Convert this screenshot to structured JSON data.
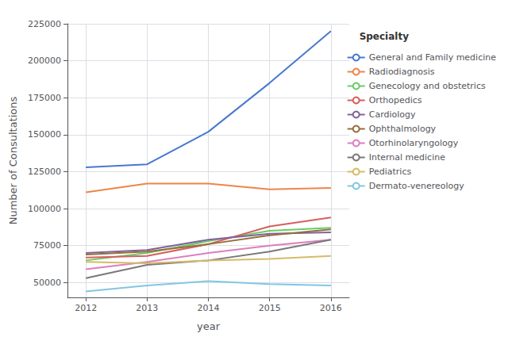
{
  "chart_data": {
    "type": "line",
    "x": [
      2012,
      2013,
      2014,
      2015,
      2016
    ],
    "series": [
      {
        "name": "General and Family medicine",
        "color": "#4878d0",
        "values": [
          128000,
          130000,
          152000,
          185000,
          220000
        ]
      },
      {
        "name": "Radiodiagnosis",
        "color": "#ee854a",
        "values": [
          111000,
          117000,
          117000,
          113000,
          114000
        ]
      },
      {
        "name": "Genecology and obstetrics",
        "color": "#6acc65",
        "values": [
          65000,
          70000,
          78000,
          85000,
          87000
        ]
      },
      {
        "name": "Orthopedics",
        "color": "#d65f5f",
        "values": [
          67000,
          68000,
          76000,
          88000,
          94000
        ]
      },
      {
        "name": "Cardiology",
        "color": "#82629b",
        "values": [
          70000,
          72000,
          79000,
          83000,
          84000
        ]
      },
      {
        "name": "Ophthalmology",
        "color": "#956e3d",
        "values": [
          69000,
          71000,
          76000,
          82000,
          86000
        ]
      },
      {
        "name": "Otorhinolaryngology",
        "color": "#dc7ec0",
        "values": [
          59000,
          64000,
          70000,
          75000,
          79000
        ]
      },
      {
        "name": "Internal medicine",
        "color": "#797979",
        "values": [
          53000,
          62000,
          65000,
          71000,
          79000
        ]
      },
      {
        "name": "Pediatrics",
        "color": "#d5bb67",
        "values": [
          64000,
          63000,
          65000,
          66000,
          68000
        ]
      },
      {
        "name": "Dermato-venereology",
        "color": "#82c6e2",
        "values": [
          44000,
          48000,
          51000,
          49000,
          48000
        ]
      }
    ],
    "xlabel": "year",
    "ylabel": "Number of Consultations",
    "xlim": [
      2011.7,
      2016.3
    ],
    "xticks": [
      2012,
      2013,
      2014,
      2015,
      2016
    ],
    "ylim": [
      40000,
      225000
    ],
    "yticks": [
      50000,
      75000,
      100000,
      125000,
      150000,
      175000,
      200000,
      225000
    ],
    "legend_title": "Specialty",
    "legend": "right",
    "grid": true
  }
}
